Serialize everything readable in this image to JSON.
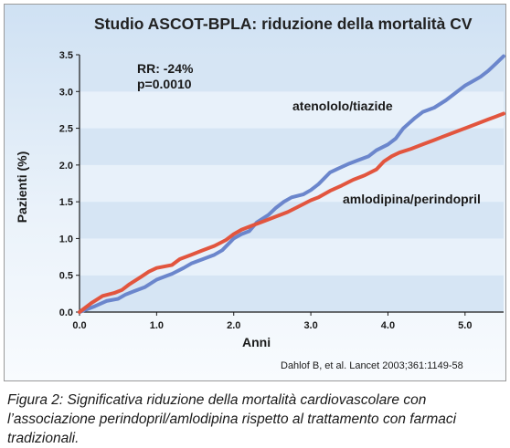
{
  "caption": "Figura 2: Significativa riduzione della mortalità cardiovascolare con l’associazione perindopril/amlodipina rispetto al trattamento con farmaci tradizionali.",
  "source": "Dahlof B, et al. Lancet 2003;361:1149-58",
  "colors": {
    "atenololo": "#6b86cc",
    "amlodipina": "#e2553e",
    "background": "#dbe8f6"
  },
  "chart_data": {
    "type": "line",
    "title": "Studio ASCOT-BPLA: riduzione della mortalità CV",
    "xlabel": "Anni",
    "ylabel": "Pazienti (%)",
    "xlim": [
      0,
      5.5
    ],
    "ylim": [
      0,
      3.5
    ],
    "x_ticks": [
      "0.0",
      "1.0",
      "2.0",
      "3.0",
      "4.0",
      "5.0"
    ],
    "y_ticks": [
      "0.0",
      "0.5",
      "1.0",
      "1.5",
      "2.0",
      "2.5",
      "3.0",
      "3.5"
    ],
    "grid": "horizontal bands",
    "annotations": {
      "rr": "RR: -24%",
      "p": "p=0.0010"
    },
    "series": [
      {
        "name": "atenololo/tiazide",
        "color": "#6b86cc",
        "x": [
          0,
          0.2,
          0.35,
          0.5,
          0.6,
          0.7,
          0.85,
          1.0,
          1.1,
          1.2,
          1.35,
          1.45,
          1.6,
          1.75,
          1.85,
          2.0,
          2.1,
          2.2,
          2.3,
          2.45,
          2.55,
          2.65,
          2.75,
          2.9,
          3.0,
          3.1,
          3.25,
          3.35,
          3.5,
          3.6,
          3.75,
          3.85,
          4.0,
          4.1,
          4.2,
          4.35,
          4.45,
          4.6,
          4.75,
          4.85,
          5.0,
          5.1,
          5.2,
          5.3,
          5.4,
          5.5
        ],
        "values": [
          0,
          0.08,
          0.15,
          0.18,
          0.24,
          0.28,
          0.34,
          0.44,
          0.48,
          0.52,
          0.6,
          0.66,
          0.72,
          0.78,
          0.84,
          1.0,
          1.06,
          1.1,
          1.22,
          1.32,
          1.42,
          1.5,
          1.56,
          1.6,
          1.66,
          1.74,
          1.9,
          1.95,
          2.02,
          2.06,
          2.12,
          2.2,
          2.28,
          2.36,
          2.5,
          2.64,
          2.72,
          2.78,
          2.88,
          2.96,
          3.08,
          3.14,
          3.2,
          3.28,
          3.38,
          3.48
        ]
      },
      {
        "name": "amlodipina/perindopril",
        "color": "#e2553e",
        "x": [
          0,
          0.15,
          0.3,
          0.45,
          0.55,
          0.65,
          0.8,
          0.9,
          1.0,
          1.2,
          1.3,
          1.45,
          1.6,
          1.75,
          1.9,
          2.0,
          2.1,
          2.25,
          2.4,
          2.55,
          2.7,
          2.85,
          3.0,
          3.1,
          3.25,
          3.4,
          3.55,
          3.7,
          3.85,
          3.95,
          4.05,
          4.15,
          4.3,
          4.45,
          4.6,
          4.7,
          4.85,
          5.0,
          5.15,
          5.3,
          5.4,
          5.5
        ],
        "values": [
          0,
          0.12,
          0.22,
          0.26,
          0.3,
          0.38,
          0.48,
          0.55,
          0.6,
          0.64,
          0.72,
          0.78,
          0.84,
          0.9,
          0.98,
          1.06,
          1.12,
          1.18,
          1.24,
          1.3,
          1.36,
          1.44,
          1.52,
          1.56,
          1.65,
          1.72,
          1.8,
          1.86,
          1.94,
          2.05,
          2.12,
          2.17,
          2.22,
          2.28,
          2.34,
          2.38,
          2.44,
          2.5,
          2.56,
          2.62,
          2.66,
          2.7
        ]
      }
    ]
  }
}
